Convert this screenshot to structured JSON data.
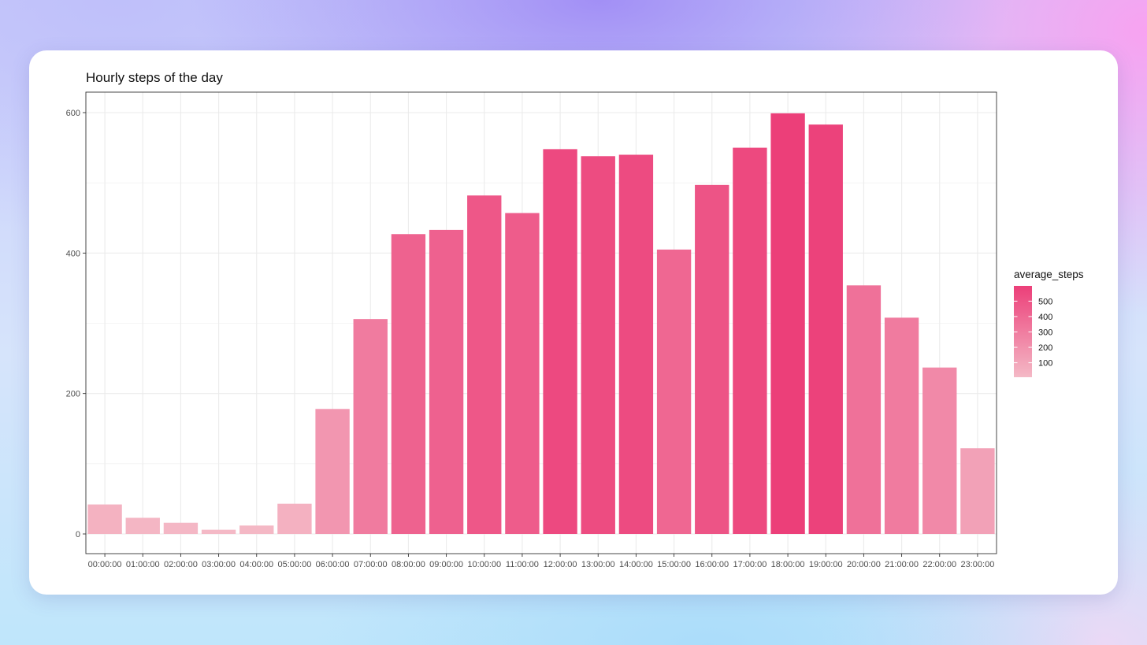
{
  "chart_data": {
    "type": "bar",
    "title": "Hourly steps of the day",
    "xlabel": "",
    "ylabel": "",
    "ylim": [
      -30,
      630
    ],
    "yticks": [
      0,
      200,
      400,
      600
    ],
    "grid": true,
    "categories": [
      "00:00:00",
      "01:00:00",
      "02:00:00",
      "03:00:00",
      "04:00:00",
      "05:00:00",
      "06:00:00",
      "07:00:00",
      "08:00:00",
      "09:00:00",
      "10:00:00",
      "11:00:00",
      "12:00:00",
      "13:00:00",
      "14:00:00",
      "15:00:00",
      "16:00:00",
      "17:00:00",
      "18:00:00",
      "19:00:00",
      "20:00:00",
      "21:00:00",
      "22:00:00",
      "23:00:00"
    ],
    "values": [
      42,
      23,
      16,
      6,
      12,
      43,
      178,
      306,
      427,
      433,
      482,
      457,
      548,
      538,
      540,
      405,
      497,
      550,
      599,
      583,
      354,
      308,
      237,
      122
    ],
    "fill_scale": {
      "variable": "average_steps",
      "low_color": "#f4b9c6",
      "high_color": "#ec3f79",
      "min": 6,
      "max": 599,
      "breaks": [
        100,
        200,
        300,
        400,
        500
      ]
    },
    "legend": {
      "title": "average_steps",
      "position": "right"
    }
  }
}
